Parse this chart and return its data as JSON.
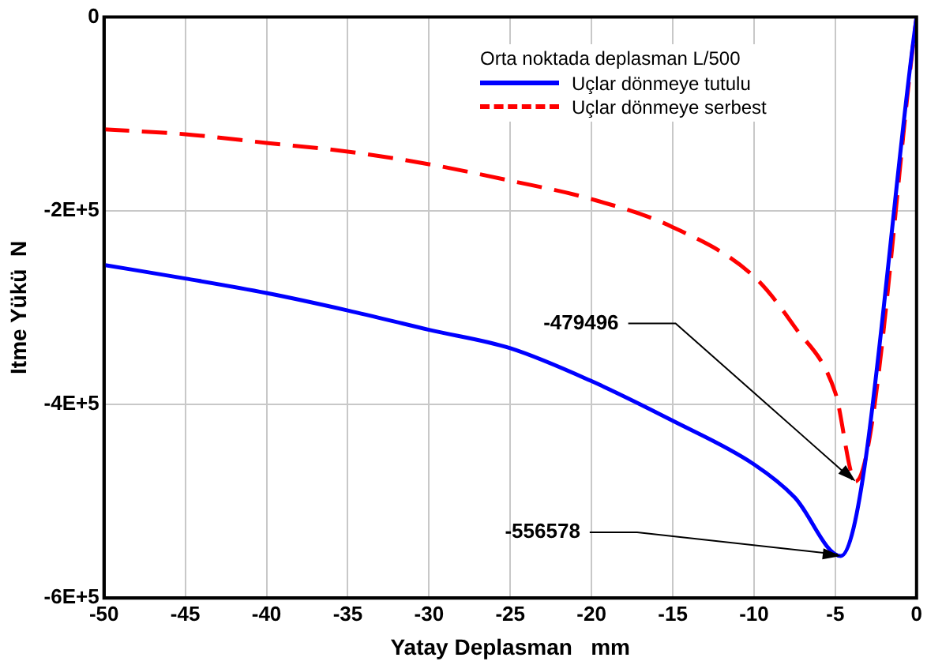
{
  "chart_data": {
    "type": "line",
    "xlabel": "Yatay Deplasman   mm",
    "ylabel": "Itme Yükü  N",
    "legend_title": "Orta noktada deplasman  L/500",
    "xlim": [
      -50,
      0
    ],
    "xticks": [
      -50,
      -45,
      -40,
      -35,
      -30,
      -25,
      -20,
      -15,
      -10,
      -5,
      0
    ],
    "ylim": [
      -600000,
      0
    ],
    "yticks": [
      {
        "value": -600000,
        "label": "-6E+5"
      },
      {
        "value": -400000,
        "label": "-4E+5"
      },
      {
        "value": -200000,
        "label": "-2E+5"
      },
      0
    ],
    "grid": true,
    "legend": "top right",
    "marker": "none",
    "series": [
      {
        "name": "Uçlar dönmeye tutulu",
        "color": "#0000ff",
        "line_style": "solid",
        "x": [
          -50,
          -45,
          -40,
          -35,
          -30,
          -25,
          -20,
          -15,
          -10,
          -7.5,
          -4.66,
          0
        ],
        "values": [
          -256000,
          -270000,
          -285000,
          -303000,
          -323000,
          -342000,
          -376000,
          -417000,
          -462000,
          -496000,
          -556578,
          0
        ]
      },
      {
        "name": "Uçlar dönmeye serbest",
        "color": "#ff0000",
        "line_style": "dashed",
        "x": [
          -50,
          -45,
          -40,
          -35,
          -30,
          -25,
          -20,
          -15,
          -10,
          -7.5,
          -5,
          -3.75,
          0
        ],
        "values": [
          -116000,
          -121000,
          -130000,
          -139000,
          -152000,
          -169000,
          -188000,
          -217000,
          -268000,
          -320000,
          -388000,
          -479496,
          0
        ]
      }
    ],
    "annotations": [
      {
        "text": "-479496",
        "x": -3.75,
        "y": -479496
      },
      {
        "text": "-556578",
        "x": -4.66,
        "y": -556578
      }
    ]
  }
}
